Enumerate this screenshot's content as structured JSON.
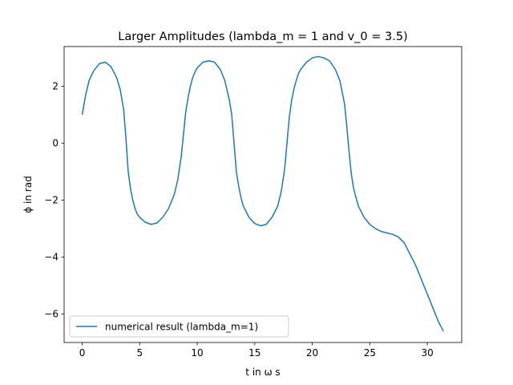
{
  "chart_data": {
    "type": "line",
    "title": "Larger Amplitudes (lambda_m = 1 and v_0 = 3.5)",
    "xlabel": "t in ω s",
    "ylabel": "ϕ in rad",
    "xlim": [
      -1.57,
      32.99
    ],
    "ylim": [
      -7.0,
      3.4
    ],
    "xticks": [
      0,
      5,
      10,
      15,
      20,
      25,
      30
    ],
    "yticks": [
      -6,
      -4,
      -2,
      0,
      2
    ],
    "xtick_labels": [
      "0",
      "5",
      "10",
      "15",
      "20",
      "25",
      "30"
    ],
    "ytick_labels": [
      "−6",
      "−4",
      "−2",
      "0",
      "2"
    ],
    "grid": false,
    "legend": {
      "placement": "lower-left"
    },
    "colors": {
      "series": "#1f77b4",
      "axes": "#000000",
      "legend_border": "#cccccc"
    },
    "series": [
      {
        "name": "numerical result (lambda_m=1)",
        "x": [
          0,
          0.3,
          0.6,
          1.0,
          1.5,
          2.0,
          2.5,
          3.0,
          3.3,
          3.6,
          3.8,
          4.0,
          4.2,
          4.4,
          4.6,
          4.8,
          5.0,
          5.5,
          6.0,
          6.5,
          7.0,
          7.5,
          8.0,
          8.3,
          8.6,
          8.8,
          9.0,
          9.2,
          9.4,
          9.6,
          9.8,
          10.0,
          10.5,
          11.0,
          11.5,
          12.0,
          12.4,
          12.8,
          13.0,
          13.2,
          13.4,
          13.6,
          13.8,
          14.0,
          14.5,
          15.0,
          15.5,
          16.0,
          16.5,
          17.0,
          17.3,
          17.6,
          17.8,
          18.0,
          18.2,
          18.4,
          18.6,
          18.8,
          19.0,
          19.5,
          20.0,
          20.5,
          21.0,
          21.5,
          22.0,
          22.4,
          22.8,
          23.0,
          23.2,
          23.4,
          23.6,
          23.8,
          24.0,
          24.5,
          25.0,
          25.5,
          26.0,
          26.5,
          27.0,
          27.5,
          28.0,
          28.5,
          29.0,
          29.5,
          30.0,
          30.5,
          31.0,
          31.4
        ],
        "y": [
          1.0,
          1.7,
          2.2,
          2.55,
          2.8,
          2.85,
          2.7,
          2.3,
          1.9,
          1.2,
          0.2,
          -1.0,
          -1.6,
          -2.0,
          -2.3,
          -2.5,
          -2.6,
          -2.78,
          -2.85,
          -2.8,
          -2.6,
          -2.3,
          -1.8,
          -1.3,
          -0.5,
          0.3,
          1.1,
          1.6,
          2.0,
          2.3,
          2.5,
          2.65,
          2.85,
          2.9,
          2.85,
          2.6,
          2.2,
          1.5,
          1.0,
          0.0,
          -1.0,
          -1.5,
          -1.9,
          -2.2,
          -2.6,
          -2.82,
          -2.9,
          -2.85,
          -2.6,
          -2.2,
          -1.7,
          -0.9,
          0.0,
          0.9,
          1.5,
          1.9,
          2.2,
          2.45,
          2.6,
          2.85,
          3.0,
          3.05,
          3.0,
          2.9,
          2.6,
          2.2,
          1.4,
          0.6,
          -0.3,
          -1.1,
          -1.6,
          -1.9,
          -2.2,
          -2.6,
          -2.85,
          -3.0,
          -3.1,
          -3.15,
          -3.2,
          -3.3,
          -3.5,
          -3.9,
          -4.3,
          -4.8,
          -5.3,
          -5.8,
          -6.3,
          -6.6
        ]
      }
    ]
  }
}
